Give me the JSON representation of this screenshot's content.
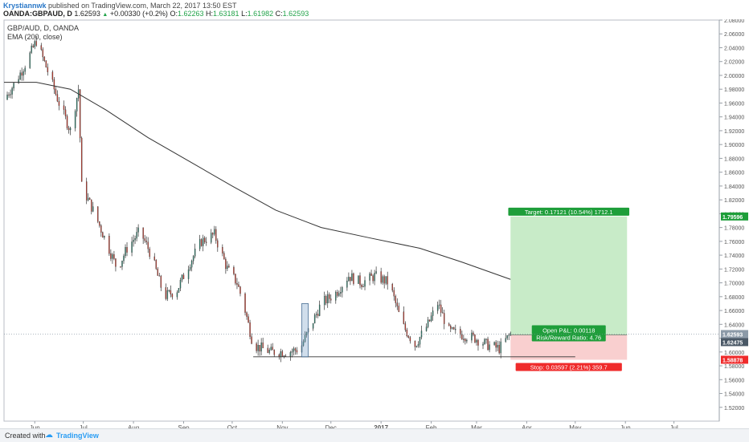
{
  "header": {
    "author": "Krystiannwk",
    "published": " published on TradingView.com, March 22, 2017 13:50 EST",
    "symbol": "OANDA:GBPAUD, D",
    "last": "1.62593",
    "change": "+0.00330 (+0.2%)",
    "o_label": "O:",
    "o": "1.62263",
    "h_label": "H:",
    "h": "1.63181",
    "l_label": "L:",
    "l": "1.61982",
    "c_label": "C:",
    "c": "1.62593"
  },
  "footer": {
    "created_with": "Created with",
    "brand": "TradingView"
  },
  "colors": {
    "up": "#26a69a",
    "down": "#ef5350",
    "candle_up": "#2e7d6b",
    "candle_down": "#c0392b",
    "ema": "#333333",
    "target_fill": "#c8ebc8",
    "stop_fill": "#f9cfcf",
    "label_green": "#1e9e3a",
    "label_red": "#ef2b2b"
  },
  "chart_data": {
    "type": "candlestick",
    "instrument_title": "GBP/AUD, D, OANDA",
    "indicator_label": "EMA (200, close)",
    "ylim": [
      1.5,
      2.08
    ],
    "y_ticks": [
      "1.52000",
      "1.54000",
      "1.56000",
      "1.58000",
      "1.60000",
      "1.62000",
      "1.64000",
      "1.66000",
      "1.68000",
      "1.70000",
      "1.72000",
      "1.74000",
      "1.76000",
      "1.78000",
      "1.80000",
      "1.82000",
      "1.84000",
      "1.86000",
      "1.88000",
      "1.90000",
      "1.92000",
      "1.94000",
      "1.96000",
      "1.98000",
      "2.00000",
      "2.02000",
      "2.04000",
      "2.06000",
      "2.08000"
    ],
    "x_ticks": [
      "Jun",
      "Jul",
      "Aug",
      "Sep",
      "Oct",
      "Nov",
      "Dec",
      "2017",
      "Feb",
      "Mar",
      "Apr",
      "May",
      "Jun",
      "Jul"
    ],
    "anchors": [
      [
        "May 13",
        1.965
      ],
      [
        "May 20",
        1.99
      ],
      [
        "May 27",
        2.02
      ],
      [
        "Jun 02",
        2.05
      ],
      [
        "Jun 10",
        2.0
      ],
      [
        "Jun 16",
        1.96
      ],
      [
        "Jun 23",
        1.92
      ],
      [
        "Jun 28",
        1.98
      ],
      [
        "Jun 30",
        1.84
      ],
      [
        "Jul 08",
        1.8
      ],
      [
        "Jul 15",
        1.76
      ],
      [
        "Jul 22",
        1.72
      ],
      [
        "Jul 28",
        1.75
      ],
      [
        "Aug 05",
        1.775
      ],
      [
        "Aug 12",
        1.74
      ],
      [
        "Aug 20",
        1.68
      ],
      [
        "Aug 28",
        1.69
      ],
      [
        "Sep 05",
        1.73
      ],
      [
        "Sep 12",
        1.76
      ],
      [
        "Sep 20",
        1.77
      ],
      [
        "Sep 28",
        1.72
      ],
      [
        "Oct 04",
        1.7
      ],
      [
        "Oct 08",
        1.67
      ],
      [
        "Oct 14",
        1.61
      ],
      [
        "Oct 25",
        1.6
      ],
      [
        "Nov 05",
        1.6
      ],
      [
        "Nov 12",
        1.605
      ],
      [
        "Nov 17",
        1.63
      ],
      [
        "Nov 25",
        1.67
      ],
      [
        "Dec 04",
        1.685
      ],
      [
        "Dec 12",
        1.71
      ],
      [
        "Dec 20",
        1.7
      ],
      [
        "Dec 28",
        1.71
      ],
      [
        "Jan 06",
        1.7
      ],
      [
        "Jan 14",
        1.64
      ],
      [
        "Jan 22",
        1.61
      ],
      [
        "Jan 30",
        1.64
      ],
      [
        "Feb 05",
        1.67
      ],
      [
        "Feb 12",
        1.63
      ],
      [
        "Feb 20",
        1.625
      ],
      [
        "Feb 28",
        1.62
      ],
      [
        "Mar 08",
        1.61
      ],
      [
        "Mar 15",
        1.605
      ],
      [
        "Mar 22",
        1.626
      ]
    ],
    "ema": [
      [
        "May 13",
        1.99
      ],
      [
        "Jun 02",
        1.99
      ],
      [
        "Jun 23",
        1.98
      ],
      [
        "Jul 15",
        1.95
      ],
      [
        "Aug 10",
        1.91
      ],
      [
        "Sep 05",
        1.875
      ],
      [
        "Oct 01",
        1.84
      ],
      [
        "Oct 28",
        1.805
      ],
      [
        "Nov 25",
        1.78
      ],
      [
        "Dec 25",
        1.765
      ],
      [
        "Jan 25",
        1.75
      ],
      [
        "Feb 20",
        1.73
      ],
      [
        "Mar 22",
        1.705
      ]
    ],
    "hline": {
      "from": "Oct 14",
      "to": "May 01",
      "value": 1.593
    },
    "long_spike": {
      "date": "Oct 07",
      "low": 1.529
    },
    "highlight_box": {
      "from": "Nov 13",
      "to": "Nov 17",
      "top": 1.67,
      "bottom": 1.593
    },
    "position": {
      "from": "Mar 22",
      "to": "Jun 02",
      "entry": 1.62475,
      "target": 1.79596,
      "stop": 1.58878,
      "target_text": "Target: 0.17121 (10.54%) 1712.1",
      "stop_text": "Stop: 0.03597 (2.21%) 359.7",
      "pnl_text": "Open P&L: 0.00118",
      "rr_text": "Risk/Reward Ratio: 4.76"
    },
    "price_tags": [
      {
        "value": 1.79596,
        "text": "1.79596",
        "kind": "target"
      },
      {
        "value": 1.62593,
        "text": "1.62593",
        "kind": "last"
      },
      {
        "value": 1.62475,
        "text": "1.62475",
        "kind": "entry"
      },
      {
        "value": 1.58878,
        "text": "1.58878",
        "kind": "stop"
      }
    ]
  }
}
